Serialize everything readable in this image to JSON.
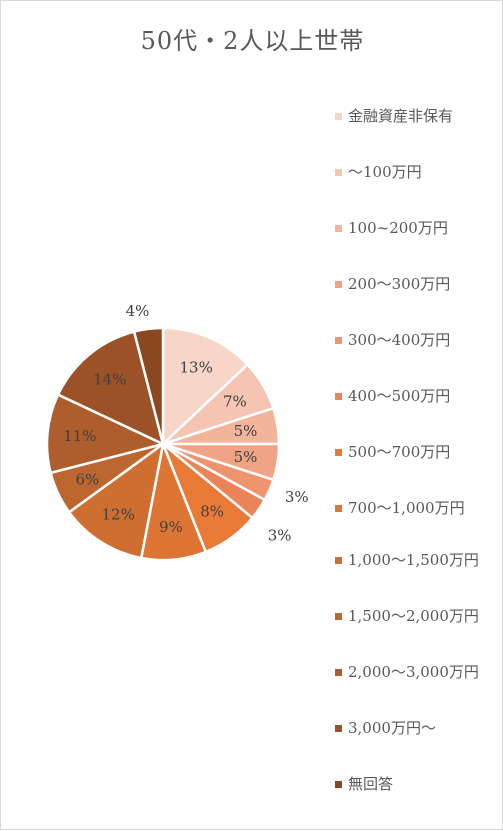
{
  "chart_data": {
    "type": "pie",
    "title": "50代・2人以上世帯",
    "categories": [
      "金融資産非保有",
      "～100万円",
      "100~200万円",
      "200～300万円",
      "300～400万円",
      "400～500万円",
      "500～700万円",
      "700～1,000万円",
      "1,000～1,500万円",
      "1,500～2,000万円",
      "2,000～3,000万円",
      "3,000万円～",
      "無回答"
    ],
    "values": [
      13,
      7,
      5,
      5,
      3,
      3,
      8,
      9,
      12,
      6,
      11,
      14,
      4
    ],
    "value_labels": [
      "13%",
      "7%",
      "5%",
      "5%",
      "3%",
      "3%",
      "8%",
      "9%",
      "12%",
      "6%",
      "11%",
      "14%",
      "4%"
    ],
    "colors": [
      "#f8d5c9",
      "#f5c4b2",
      "#f3b49c",
      "#f0a485",
      "#ee946e",
      "#eb8458",
      "#e87a35",
      "#dd7535",
      "#ce6e31",
      "#be6630",
      "#ad5e2c",
      "#9c5226",
      "#8a4720"
    ],
    "legend_position": "right"
  }
}
